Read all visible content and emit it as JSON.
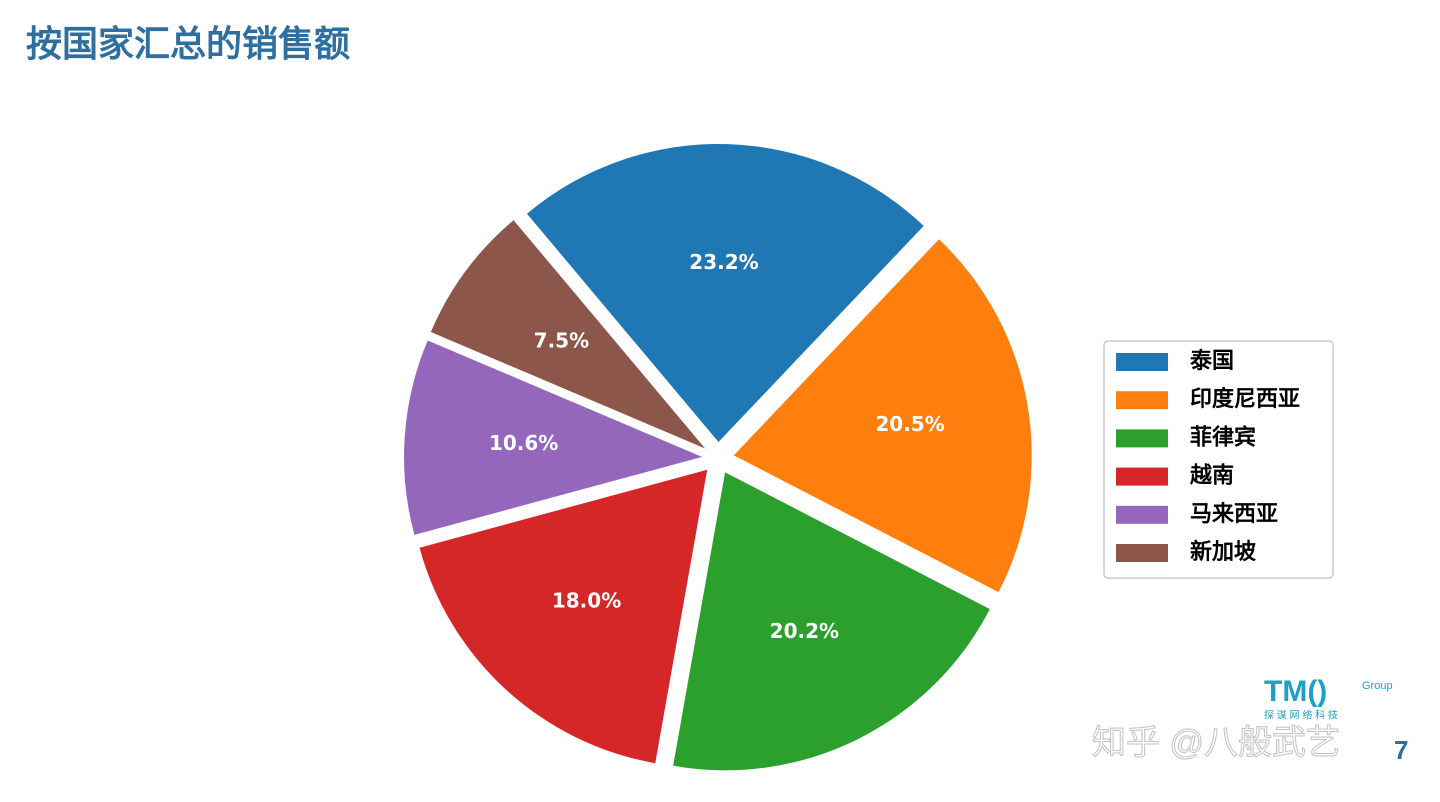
{
  "chart_data": {
    "type": "pie",
    "title": "按国家汇总的销售额",
    "categories": [
      "泰国",
      "印度尼西亚",
      "菲律宾",
      "越南",
      "马来西亚",
      "新加坡"
    ],
    "values": [
      23.2,
      20.5,
      20.2,
      18.0,
      10.6,
      7.5
    ],
    "value_labels": [
      "23.2%",
      "20.5%",
      "20.2%",
      "18.0%",
      "10.6%",
      "7.5%"
    ],
    "colors": [
      "#1f77b4",
      "#ff7f0e",
      "#2ca02c",
      "#d62728",
      "#9467bd",
      "#8c564b"
    ],
    "legend": "right"
  },
  "footer": {
    "logo": "TM()",
    "logo_sub": "Group",
    "logo_cn": "探 谋 网 络 科 技",
    "page": "7",
    "watermark": "知乎 @八般武艺"
  }
}
